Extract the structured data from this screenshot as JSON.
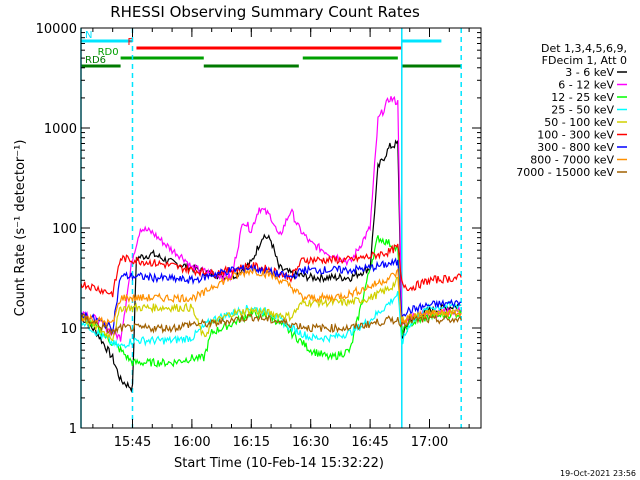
{
  "chart_data": {
    "type": "line",
    "title": "RHESSI Observing Summary Count Rates",
    "xlabel": "Start Time (10-Feb-14 15:32:22)",
    "ylabel": "Count Rate (s⁻¹ detector⁻¹)",
    "y_scale": "log",
    "ylim": [
      1,
      10000
    ],
    "xlim": [
      "15:32",
      "17:13"
    ],
    "x_ticks": [
      "15:45",
      "16:00",
      "16:15",
      "16:30",
      "16:45",
      "17:00"
    ],
    "y_ticks": [
      "1",
      "10",
      "100",
      "1000",
      "10000"
    ],
    "timestamp": "19-Oct-2021 23:56",
    "legend_header": [
      "Det 1,3,4,5,6,9,",
      "FDecim 1, Att 0"
    ],
    "legend_position": "right",
    "flags": [
      {
        "label": "N",
        "color": "#00e5ff",
        "segments": [
          [
            "15:32",
            "15:45"
          ],
          [
            "16:53",
            "17:03"
          ]
        ]
      },
      {
        "label": "F",
        "color": "#ff0000",
        "segments": [
          [
            "15:46",
            "16:53"
          ]
        ]
      },
      {
        "label": "RD0",
        "color": "#00a000",
        "segments": [
          [
            "15:42",
            "16:03"
          ],
          [
            "16:28",
            "16:52"
          ]
        ]
      },
      {
        "label": "RD6",
        "color": "#007a00",
        "segments": [
          [
            "15:32",
            "15:42"
          ],
          [
            "16:03",
            "16:27"
          ],
          [
            "16:53",
            "17:08"
          ]
        ]
      }
    ],
    "night_markers": [
      {
        "time": "15:32",
        "style": "solid"
      },
      {
        "time": "15:45",
        "style": "dashed"
      },
      {
        "time": "16:53",
        "style": "solid"
      },
      {
        "time": "17:08",
        "style": "dashed"
      }
    ],
    "series": [
      {
        "name": "3 - 6 keV",
        "color": "#000000",
        "points": [
          [
            "15:32",
            13
          ],
          [
            "15:36",
            9
          ],
          [
            "15:40",
            5
          ],
          [
            "15:42",
            3
          ],
          [
            "15:45",
            2.5
          ],
          [
            "15:46",
            50
          ],
          [
            "15:50",
            55
          ],
          [
            "15:55",
            45
          ],
          [
            "15:58",
            42
          ],
          [
            "16:00",
            40
          ],
          [
            "16:05",
            35
          ],
          [
            "16:10",
            32
          ],
          [
            "16:15",
            45
          ],
          [
            "16:18",
            85
          ],
          [
            "16:20",
            75
          ],
          [
            "16:22",
            40
          ],
          [
            "16:25",
            35
          ],
          [
            "16:30",
            32
          ],
          [
            "16:35",
            32
          ],
          [
            "16:40",
            32
          ],
          [
            "16:45",
            40
          ],
          [
            "16:47",
            400
          ],
          [
            "16:50",
            650
          ],
          [
            "16:52",
            700
          ],
          [
            "16:53",
            8
          ],
          [
            "16:55",
            12
          ],
          [
            "17:00",
            15
          ],
          [
            "17:08",
            17
          ]
        ]
      },
      {
        "name": "6 - 12 keV",
        "color": "#ff00ff",
        "points": [
          [
            "15:32",
            15
          ],
          [
            "15:36",
            12
          ],
          [
            "15:40",
            9
          ],
          [
            "15:42",
            8
          ],
          [
            "15:45",
            50
          ],
          [
            "15:47",
            100
          ],
          [
            "15:50",
            90
          ],
          [
            "15:55",
            60
          ],
          [
            "15:58",
            50
          ],
          [
            "16:00",
            40
          ],
          [
            "16:05",
            35
          ],
          [
            "16:10",
            32
          ],
          [
            "16:13",
            120
          ],
          [
            "16:15",
            95
          ],
          [
            "16:17",
            160
          ],
          [
            "16:20",
            130
          ],
          [
            "16:22",
            80
          ],
          [
            "16:25",
            150
          ],
          [
            "16:27",
            100
          ],
          [
            "16:30",
            70
          ],
          [
            "16:35",
            55
          ],
          [
            "16:40",
            45
          ],
          [
            "16:45",
            100
          ],
          [
            "16:47",
            1200
          ],
          [
            "16:50",
            2000
          ],
          [
            "16:52",
            1800
          ],
          [
            "16:53",
            10
          ],
          [
            "16:55",
            13
          ],
          [
            "17:00",
            14
          ],
          [
            "17:08",
            15
          ]
        ]
      },
      {
        "name": "12 - 25 keV",
        "color": "#00ff00",
        "points": [
          [
            "15:32",
            13
          ],
          [
            "15:36",
            10
          ],
          [
            "15:40",
            7
          ],
          [
            "15:42",
            6
          ],
          [
            "15:45",
            4.5
          ],
          [
            "15:50",
            4.5
          ],
          [
            "15:55",
            4.5
          ],
          [
            "16:00",
            5
          ],
          [
            "16:03",
            5
          ],
          [
            "16:05",
            9
          ],
          [
            "16:10",
            11
          ],
          [
            "16:15",
            14
          ],
          [
            "16:20",
            13
          ],
          [
            "16:25",
            9
          ],
          [
            "16:30",
            6
          ],
          [
            "16:35",
            5
          ],
          [
            "16:40",
            6
          ],
          [
            "16:45",
            40
          ],
          [
            "16:47",
            80
          ],
          [
            "16:50",
            70
          ],
          [
            "16:52",
            60
          ],
          [
            "16:53",
            9
          ],
          [
            "16:55",
            11
          ],
          [
            "17:00",
            13
          ],
          [
            "17:08",
            14
          ]
        ]
      },
      {
        "name": "25 - 50 keV",
        "color": "#00ffff",
        "points": [
          [
            "15:32",
            12
          ],
          [
            "15:36",
            9
          ],
          [
            "15:40",
            7
          ],
          [
            "15:42",
            6.5
          ],
          [
            "15:45",
            7.5
          ],
          [
            "15:50",
            7.5
          ],
          [
            "15:55",
            7.5
          ],
          [
            "16:00",
            8
          ],
          [
            "16:05",
            12
          ],
          [
            "16:10",
            14
          ],
          [
            "16:15",
            16
          ],
          [
            "16:20",
            14
          ],
          [
            "16:25",
            10
          ],
          [
            "16:30",
            8
          ],
          [
            "16:35",
            8
          ],
          [
            "16:40",
            9
          ],
          [
            "16:45",
            12
          ],
          [
            "16:50",
            18
          ],
          [
            "16:52",
            22
          ],
          [
            "16:53",
            7
          ],
          [
            "16:55",
            11
          ],
          [
            "17:00",
            16
          ],
          [
            "17:08",
            17
          ]
        ]
      },
      {
        "name": "50 - 100 keV",
        "color": "#d0d000",
        "points": [
          [
            "15:32",
            13
          ],
          [
            "15:36",
            10
          ],
          [
            "15:40",
            8
          ],
          [
            "15:42",
            16
          ],
          [
            "15:45",
            16
          ],
          [
            "15:50",
            16
          ],
          [
            "15:55",
            16
          ],
          [
            "16:00",
            16
          ],
          [
            "16:03",
            8
          ],
          [
            "16:05",
            11
          ],
          [
            "16:10",
            14
          ],
          [
            "16:15",
            15
          ],
          [
            "16:20",
            14
          ],
          [
            "16:25",
            13
          ],
          [
            "16:28",
            18
          ],
          [
            "16:30",
            18
          ],
          [
            "16:35",
            18
          ],
          [
            "16:40",
            18
          ],
          [
            "16:45",
            20
          ],
          [
            "16:50",
            25
          ],
          [
            "16:52",
            30
          ],
          [
            "16:53",
            12
          ],
          [
            "16:55",
            13
          ],
          [
            "17:00",
            14
          ],
          [
            "17:08",
            14
          ]
        ]
      },
      {
        "name": "100 - 300 keV",
        "color": "#ff0000",
        "points": [
          [
            "15:32",
            28
          ],
          [
            "15:36",
            25
          ],
          [
            "15:40",
            22
          ],
          [
            "15:42",
            50
          ],
          [
            "15:45",
            48
          ],
          [
            "15:50",
            45
          ],
          [
            "15:55",
            42
          ],
          [
            "16:00",
            38
          ],
          [
            "16:05",
            35
          ],
          [
            "16:10",
            38
          ],
          [
            "16:15",
            42
          ],
          [
            "16:20",
            38
          ],
          [
            "16:25",
            32
          ],
          [
            "16:28",
            48
          ],
          [
            "16:30",
            48
          ],
          [
            "16:35",
            48
          ],
          [
            "16:40",
            48
          ],
          [
            "16:45",
            52
          ],
          [
            "16:50",
            58
          ],
          [
            "16:52",
            65
          ],
          [
            "16:53",
            28
          ],
          [
            "16:55",
            25
          ],
          [
            "17:00",
            30
          ],
          [
            "17:08",
            32
          ]
        ]
      },
      {
        "name": "300 - 800 keV",
        "color": "#0000ff",
        "points": [
          [
            "15:32",
            14
          ],
          [
            "15:36",
            12
          ],
          [
            "15:40",
            10
          ],
          [
            "15:42",
            33
          ],
          [
            "15:45",
            33
          ],
          [
            "15:50",
            32
          ],
          [
            "15:55",
            31
          ],
          [
            "16:00",
            30
          ],
          [
            "16:03",
            32
          ],
          [
            "16:05",
            34
          ],
          [
            "16:10",
            38
          ],
          [
            "16:15",
            40
          ],
          [
            "16:20",
            36
          ],
          [
            "16:25",
            32
          ],
          [
            "16:28",
            38
          ],
          [
            "16:30",
            38
          ],
          [
            "16:35",
            38
          ],
          [
            "16:40",
            38
          ],
          [
            "16:45",
            40
          ],
          [
            "16:50",
            44
          ],
          [
            "16:52",
            45
          ],
          [
            "16:53",
            14
          ],
          [
            "16:55",
            15
          ],
          [
            "17:00",
            17
          ],
          [
            "17:08",
            18
          ]
        ]
      },
      {
        "name": "800 - 7000 keV",
        "color": "#ff9000",
        "points": [
          [
            "15:32",
            13
          ],
          [
            "15:36",
            12
          ],
          [
            "15:40",
            11
          ],
          [
            "15:42",
            20
          ],
          [
            "15:45",
            20
          ],
          [
            "15:50",
            20
          ],
          [
            "15:55",
            20
          ],
          [
            "16:00",
            20
          ],
          [
            "16:03",
            22
          ],
          [
            "16:05",
            26
          ],
          [
            "16:10",
            32
          ],
          [
            "16:15",
            38
          ],
          [
            "16:20",
            34
          ],
          [
            "16:25",
            26
          ],
          [
            "16:28",
            20
          ],
          [
            "16:30",
            20
          ],
          [
            "16:35",
            20
          ],
          [
            "16:40",
            22
          ],
          [
            "16:45",
            26
          ],
          [
            "16:50",
            32
          ],
          [
            "16:52",
            36
          ],
          [
            "16:53",
            11
          ],
          [
            "16:55",
            13
          ],
          [
            "17:00",
            14
          ],
          [
            "17:08",
            14
          ]
        ]
      },
      {
        "name": "7000 - 15000 keV",
        "color": "#a06000",
        "points": [
          [
            "15:32",
            13
          ],
          [
            "15:36",
            11
          ],
          [
            "15:40",
            9
          ],
          [
            "15:42",
            10
          ],
          [
            "15:45",
            10
          ],
          [
            "15:50",
            10
          ],
          [
            "15:55",
            10
          ],
          [
            "16:00",
            11
          ],
          [
            "16:05",
            11
          ],
          [
            "16:10",
            12
          ],
          [
            "16:15",
            13
          ],
          [
            "16:20",
            12
          ],
          [
            "16:25",
            11
          ],
          [
            "16:30",
            10
          ],
          [
            "16:35",
            10
          ],
          [
            "16:40",
            10
          ],
          [
            "16:45",
            11
          ],
          [
            "16:50",
            12
          ],
          [
            "16:52",
            12
          ],
          [
            "16:53",
            11
          ],
          [
            "16:55",
            12
          ],
          [
            "17:00",
            12
          ],
          [
            "17:08",
            12
          ]
        ]
      }
    ]
  }
}
